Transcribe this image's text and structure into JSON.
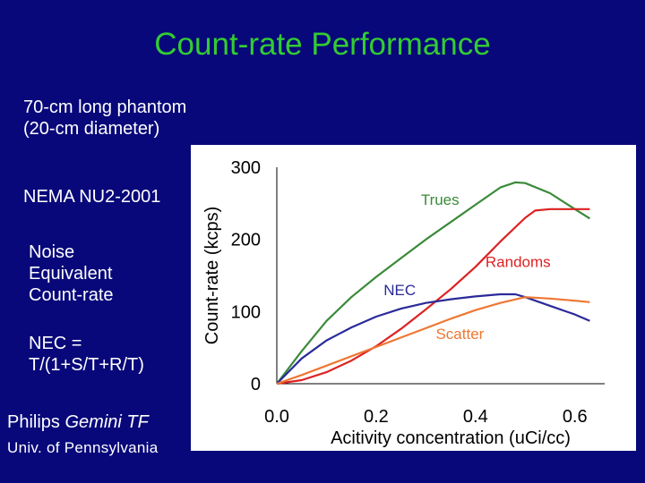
{
  "slide": {
    "title": "Count-rate Performance",
    "notes": [
      "70-cm long phantom (20-cm diameter)",
      "NEMA NU2-2001",
      "Noise Equivalent Count-rate",
      "NEC = T/(1+S/T+R/T)"
    ],
    "credit_system_prefix": "Philips ",
    "credit_system_name": "Gemini TF",
    "credit_institution": "Univ. of Pennsylvania"
  },
  "chart_data": {
    "type": "line",
    "title": "",
    "xlabel": "Acitivity concentration (uCi/cc)",
    "ylabel": "Count-rate (kcps)",
    "xlim": [
      0,
      0.66
    ],
    "ylim": [
      0,
      300
    ],
    "xticks": [
      0.0,
      0.2,
      0.4,
      0.6
    ],
    "xtick_labels": [
      "0.0",
      "0.2",
      "0.4",
      "0.6"
    ],
    "yticks": [
      0,
      100,
      200,
      300
    ],
    "ytick_labels": [
      "0",
      "100",
      "200",
      "300"
    ],
    "grid": false,
    "series": [
      {
        "name": "Trues",
        "color": "#3a8a3a",
        "x": [
          0,
          0.05,
          0.1,
          0.15,
          0.2,
          0.25,
          0.3,
          0.35,
          0.4,
          0.45,
          0.48,
          0.5,
          0.55,
          0.6,
          0.63
        ],
        "y": [
          0,
          45,
          87,
          120,
          148,
          174,
          200,
          224,
          248,
          272,
          279,
          278,
          264,
          242,
          229
        ]
      },
      {
        "name": "Randoms",
        "color": "#dd2222",
        "x": [
          0,
          0.05,
          0.1,
          0.15,
          0.2,
          0.25,
          0.3,
          0.35,
          0.4,
          0.45,
          0.5,
          0.52,
          0.55,
          0.6,
          0.63
        ],
        "y": [
          0,
          5,
          16,
          32,
          52,
          76,
          103,
          131,
          162,
          197,
          230,
          240,
          242,
          242,
          242
        ]
      },
      {
        "name": "NEC",
        "color": "#2a2a9a",
        "x": [
          0,
          0.05,
          0.1,
          0.15,
          0.2,
          0.25,
          0.3,
          0.35,
          0.4,
          0.45,
          0.48,
          0.5,
          0.55,
          0.6,
          0.63
        ],
        "y": [
          0,
          35,
          60,
          78,
          93,
          104,
          112,
          117,
          121,
          124,
          124,
          120,
          108,
          96,
          87
        ]
      },
      {
        "name": "Scatter",
        "color": "#ee7733",
        "x": [
          0,
          0.05,
          0.1,
          0.15,
          0.2,
          0.25,
          0.3,
          0.35,
          0.4,
          0.45,
          0.5,
          0.55,
          0.6,
          0.63
        ],
        "y": [
          0,
          12,
          25,
          38,
          51,
          64,
          77,
          90,
          102,
          112,
          120,
          118,
          115,
          113
        ]
      }
    ],
    "annotations": [
      {
        "text": "Trues",
        "series": "Trues",
        "x": 0.29,
        "y": 248
      },
      {
        "text": "Randoms",
        "series": "Randoms",
        "x": 0.42,
        "y": 162
      },
      {
        "text": "NEC",
        "series": "NEC",
        "x": 0.215,
        "y": 123
      },
      {
        "text": "Scatter",
        "series": "Scatter",
        "x": 0.32,
        "y": 62
      }
    ]
  }
}
